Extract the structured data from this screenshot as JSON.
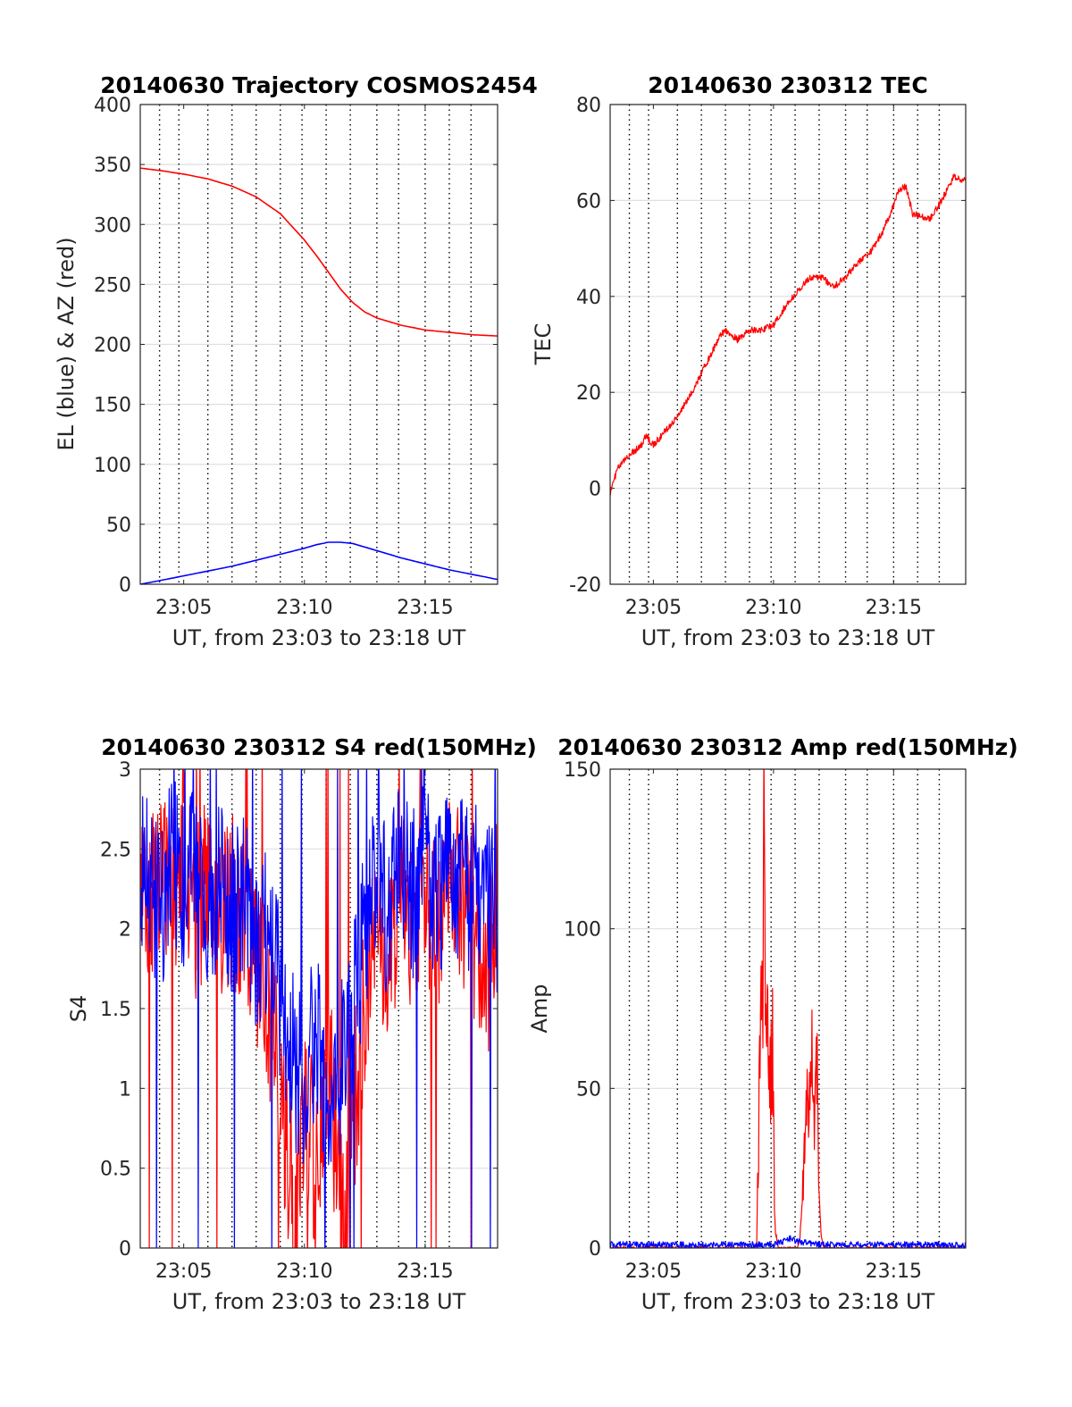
{
  "chart_data": [
    {
      "id": "p1",
      "type": "line",
      "title": "20140630 Trajectory COSMOS2454",
      "xlabel": "UT, from 23:03 to 23:18 UT",
      "ylabel": "EL (blue) & AZ (red)",
      "xlim": [
        3.2,
        18.0
      ],
      "ylim": [
        0,
        400
      ],
      "x_ticks": [
        {
          "v": 5,
          "label": "23:05"
        },
        {
          "v": 10,
          "label": "23:10"
        },
        {
          "v": 15,
          "label": "23:15"
        }
      ],
      "y_ticks": [
        0,
        50,
        100,
        150,
        200,
        250,
        300,
        350,
        400
      ],
      "grid": true,
      "series": [
        {
          "color": "#ff0000",
          "x": [
            3.2,
            4,
            5,
            6,
            7,
            8,
            9,
            10,
            10.5,
            11,
            11.5,
            12,
            12.5,
            13,
            14,
            15,
            16,
            17,
            18
          ],
          "values": [
            347,
            345,
            342,
            338,
            332,
            323,
            309,
            287,
            274,
            260,
            246,
            235,
            227,
            222,
            216,
            212,
            210,
            208,
            207
          ]
        },
        {
          "color": "#0000ff",
          "x": [
            3.2,
            4,
            5,
            6,
            7,
            8,
            9,
            10,
            10.5,
            11,
            11.5,
            12,
            13,
            14,
            15,
            16,
            17,
            18
          ],
          "values": [
            0,
            3,
            7,
            11,
            15,
            20,
            25,
            30,
            33,
            35,
            35,
            34,
            28,
            22,
            17,
            12,
            8,
            4
          ]
        }
      ]
    },
    {
      "id": "p2",
      "type": "line",
      "title": "20140630 230312 TEC",
      "xlabel": "UT, from 23:03 to 23:18 UT",
      "ylabel": "TEC",
      "xlim": [
        3.2,
        18.0
      ],
      "ylim": [
        -20,
        80
      ],
      "x_ticks": [
        {
          "v": 5,
          "label": "23:05"
        },
        {
          "v": 10,
          "label": "23:10"
        },
        {
          "v": 15,
          "label": "23:15"
        }
      ],
      "y_ticks": [
        -20,
        0,
        20,
        40,
        60,
        80
      ],
      "grid": true,
      "series": [
        {
          "color": "#ff0000",
          "x": [
            3.2,
            3.5,
            4,
            4.5,
            4.7,
            5,
            5.5,
            6,
            6.5,
            7,
            7.5,
            7.8,
            8,
            8.5,
            9,
            9.5,
            10,
            10.5,
            11,
            11.5,
            12,
            12.5,
            13,
            13.5,
            14,
            14.5,
            15,
            15.2,
            15.5,
            15.8,
            16,
            16.5,
            17,
            17.5,
            18
          ],
          "values": [
            -1,
            4,
            7,
            9,
            11,
            9,
            12,
            15,
            19,
            24,
            29,
            32,
            33,
            31,
            33,
            33,
            34,
            38,
            41,
            44,
            44,
            42,
            44,
            47,
            49,
            53,
            59,
            62,
            63,
            57,
            57,
            56,
            60,
            65,
            64
          ]
        }
      ]
    },
    {
      "id": "p3",
      "type": "line",
      "title": "20140630 230312 S4 red(150MHz)",
      "xlabel": "UT, from 23:03 to 23:18 UT",
      "ylabel": "S4",
      "xlim": [
        3.2,
        18.0
      ],
      "ylim": [
        0,
        3
      ],
      "x_ticks": [
        {
          "v": 5,
          "label": "23:05"
        },
        {
          "v": 10,
          "label": "23:10"
        },
        {
          "v": 15,
          "label": "23:15"
        }
      ],
      "y_ticks": [
        {
          "v": 0,
          "label": "0"
        },
        {
          "v": 0.5,
          "label": "0.5"
        },
        {
          "v": 1,
          "label": "1"
        },
        {
          "v": 1.5,
          "label": "1.5"
        },
        {
          "v": 2,
          "label": "2"
        },
        {
          "v": 2.5,
          "label": "2.5"
        },
        {
          "v": 3,
          "label": "3"
        }
      ],
      "grid": true,
      "series": [
        {
          "color": "#ff0000",
          "x": [
            3.2,
            3.5,
            4,
            4.5,
            5,
            5.5,
            6,
            6.5,
            7,
            7.5,
            8,
            8.5,
            9,
            9.3,
            9.6,
            10,
            10.5,
            11,
            11.3,
            11.6,
            12,
            12.5,
            13,
            13.5,
            14,
            14.5,
            15,
            15.5,
            16,
            16.5,
            17,
            17.5,
            18
          ],
          "values": [
            2.4,
            2.1,
            2.3,
            2.2,
            2.5,
            2.1,
            2.3,
            2.0,
            2.2,
            2.0,
            1.8,
            1.5,
            1.0,
            0.6,
            0.3,
            0.9,
            0.5,
            1.2,
            0.6,
            0.15,
            0.8,
            1.5,
            2.0,
            1.8,
            2.2,
            2.0,
            2.3,
            1.9,
            2.4,
            2.2,
            2.0,
            1.6,
            2.3
          ]
        },
        {
          "color": "#0000ff",
          "x": [
            3.2,
            3.5,
            4,
            4.5,
            5,
            5.5,
            6,
            6.5,
            7,
            7.5,
            8,
            8.5,
            9,
            9.5,
            10,
            10.5,
            11,
            11.5,
            12,
            12.5,
            13,
            13.5,
            14,
            14.5,
            15,
            15.5,
            16,
            16.5,
            17,
            17.5,
            18
          ],
          "values": [
            2.3,
            2.4,
            2.1,
            2.5,
            2.2,
            2.4,
            2.0,
            2.3,
            2.1,
            2.2,
            1.9,
            2.0,
            1.6,
            1.2,
            1.0,
            1.4,
            0.6,
            1.1,
            1.5,
            2.0,
            2.3,
            2.1,
            2.5,
            2.2,
            2.4,
            2.1,
            2.5,
            2.3,
            2.2,
            2.4,
            2.0
          ]
        }
      ]
    },
    {
      "id": "p4",
      "type": "line",
      "title": "20140630 230312 Amp red(150MHz)",
      "xlabel": "UT, from 23:03 to 23:18 UT",
      "ylabel": "Amp",
      "xlim": [
        3.2,
        18.0
      ],
      "ylim": [
        0,
        150
      ],
      "x_ticks": [
        {
          "v": 5,
          "label": "23:05"
        },
        {
          "v": 10,
          "label": "23:10"
        },
        {
          "v": 15,
          "label": "23:15"
        }
      ],
      "y_ticks": [
        0,
        50,
        100,
        150
      ],
      "grid": true,
      "series": [
        {
          "color": "#ff0000",
          "x": [
            3.2,
            9.0,
            9.3,
            9.4,
            9.5,
            9.55,
            9.6,
            9.65,
            9.75,
            9.85,
            9.95,
            10.05,
            10.1,
            10.15,
            10.2,
            10.5,
            11.0,
            11.1,
            11.3,
            11.4,
            11.5,
            11.6,
            11.7,
            11.8,
            11.9,
            12.0,
            12.1,
            18.0
          ],
          "values": [
            0,
            0,
            0,
            45,
            85,
            60,
            147,
            70,
            78,
            50,
            70,
            10,
            5,
            2,
            0,
            0,
            0,
            3,
            30,
            50,
            55,
            65,
            40,
            60,
            20,
            3,
            0,
            0
          ]
        },
        {
          "color": "#0000ff",
          "x": [
            3.2,
            4,
            5,
            6,
            7,
            8,
            9,
            10,
            10.7,
            11,
            12,
            13,
            14,
            15,
            16,
            17,
            18
          ],
          "values": [
            1,
            1,
            1,
            1,
            1,
            1,
            1,
            1,
            3,
            2,
            1,
            1,
            1,
            1,
            1,
            1,
            1
          ]
        }
      ]
    }
  ]
}
